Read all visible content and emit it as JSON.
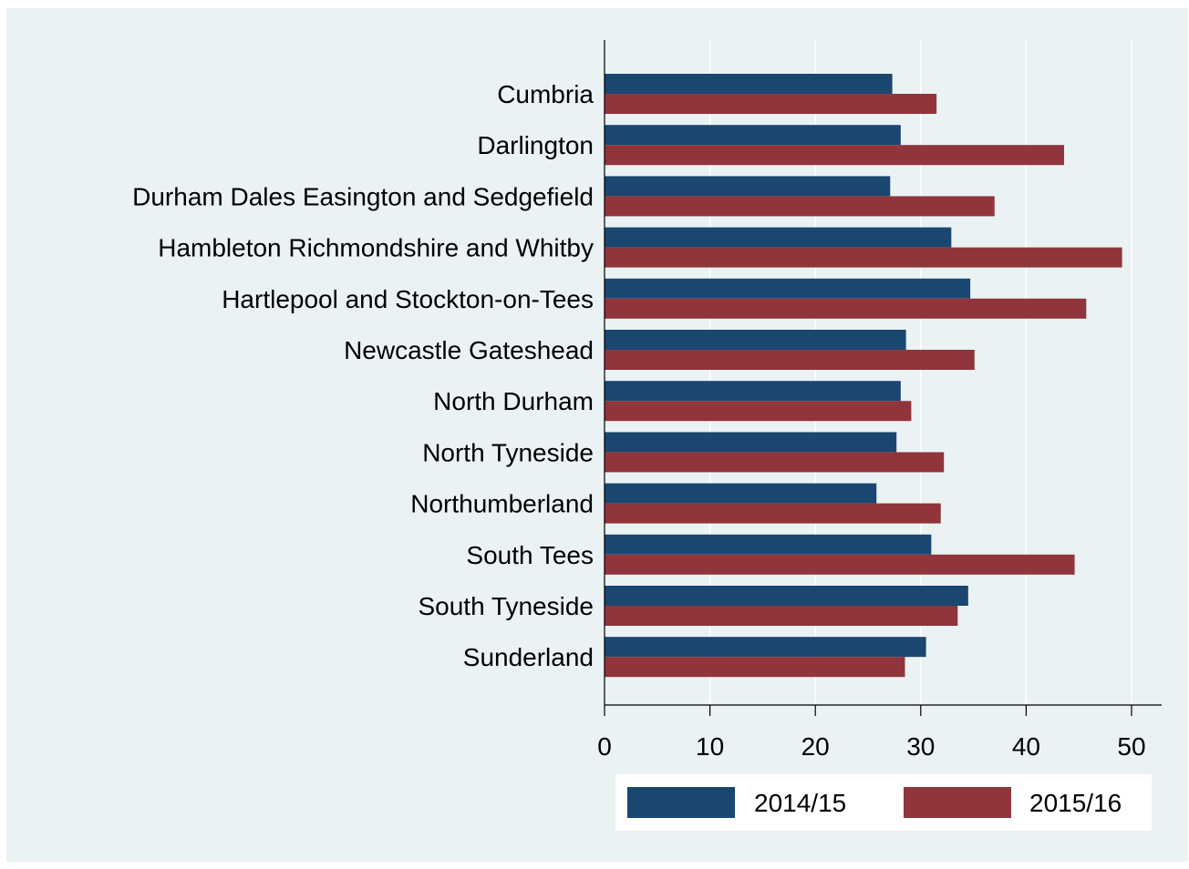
{
  "chart_data": {
    "type": "bar",
    "orientation": "horizontal",
    "title": "",
    "xlabel": "",
    "ylabel": "",
    "xlim": [
      0,
      53
    ],
    "x_ticks": [
      0,
      10,
      20,
      30,
      40,
      50
    ],
    "grid": true,
    "legend_position": "bottom",
    "categories": [
      "Cumbria",
      "Darlington",
      "Durham Dales Easington and Sedgefield",
      "Hambleton Richmondshire and Whitby",
      "Hartlepool and Stockton-on-Tees",
      "Newcastle Gateshead",
      "North Durham",
      "North Tyneside",
      "Northumberland",
      "South Tees",
      "South Tyneside",
      "Sunderland"
    ],
    "series": [
      {
        "name": "2014/15",
        "color": "#1a476f",
        "values": [
          27.3,
          28.1,
          27.1,
          32.9,
          34.7,
          28.6,
          28.1,
          27.7,
          25.8,
          31.0,
          34.5,
          30.5
        ]
      },
      {
        "name": "2015/16",
        "color": "#90353b",
        "values": [
          31.5,
          43.6,
          37.0,
          49.1,
          45.7,
          35.1,
          29.1,
          32.2,
          31.9,
          44.6,
          33.5,
          28.5
        ]
      }
    ]
  }
}
